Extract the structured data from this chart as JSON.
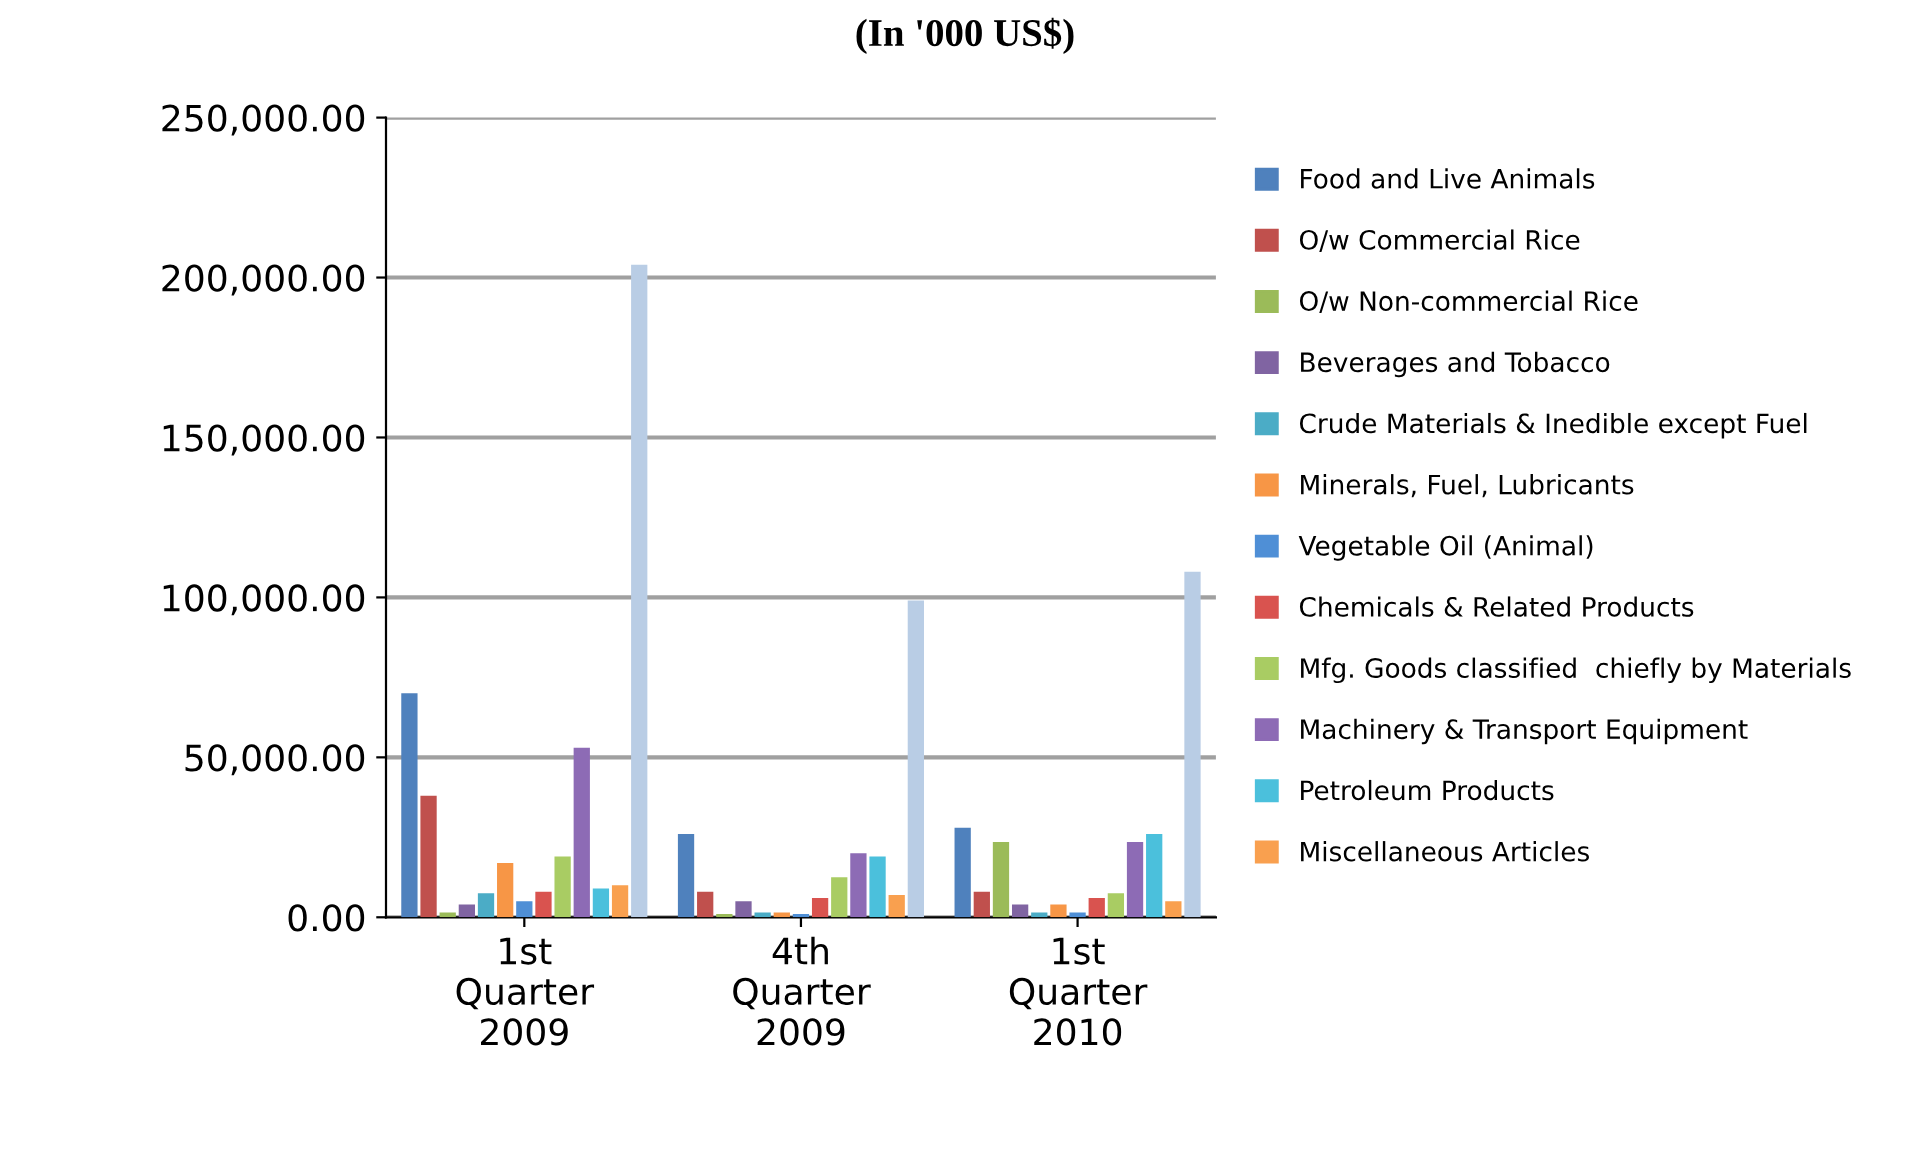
{
  "chart_data": {
    "type": "bar",
    "title": "(In '000 US$)",
    "categories": [
      "1st\nQuarter\n2009",
      "4th\nQuarter\n2009",
      "1st\nQuarter\n2010"
    ],
    "series": [
      {
        "name": "Food and Live Animals",
        "color": "#4f81bd",
        "values": [
          70000,
          26000,
          28000
        ]
      },
      {
        "name": "O/w Commercial Rice",
        "color": "#c0504d",
        "values": [
          38000,
          8000,
          8000
        ]
      },
      {
        "name": "O/w Non-commercial Rice",
        "color": "#9bbb59",
        "values": [
          1500,
          1000,
          23500
        ]
      },
      {
        "name": "Beverages and Tobacco",
        "color": "#8064a2",
        "values": [
          4000,
          5000,
          4000
        ]
      },
      {
        "name": "Crude Materials & Inedible except Fuel",
        "color": "#4bacc6",
        "values": [
          7500,
          1500,
          1500
        ]
      },
      {
        "name": "Minerals, Fuel, Lubricants",
        "color": "#f79646",
        "values": [
          17000,
          1500,
          4000
        ]
      },
      {
        "name": "Vegetable Oil (Animal)",
        "color": "#4f8fd6",
        "values": [
          5000,
          1000,
          1500
        ]
      },
      {
        "name": "Chemicals & Related Products",
        "color": "#d9534f",
        "values": [
          8000,
          6000,
          6000
        ]
      },
      {
        "name": "Mfg. Goods classified  chiefly by Materials",
        "color": "#a9cc63",
        "values": [
          19000,
          12500,
          7500
        ]
      },
      {
        "name": "Machinery & Transport Equipment",
        "color": "#8d6bb5",
        "values": [
          53000,
          20000,
          23500
        ]
      },
      {
        "name": "Petroleum Products",
        "color": "#4bc0dc",
        "values": [
          9000,
          19000,
          26000
        ]
      },
      {
        "name": "Miscellaneous Articles",
        "color": "#f9a04f",
        "values": [
          10000,
          7000,
          5000
        ]
      },
      {
        "color": "#b9cde5",
        "values": [
          204000,
          99000,
          108000
        ]
      }
    ],
    "ylim": [
      0,
      250000
    ],
    "yticks": [
      {
        "value": 0,
        "label": "0.00"
      },
      {
        "value": 50000,
        "label": "50,000.00"
      },
      {
        "value": 100000,
        "label": "100,000.00"
      },
      {
        "value": 150000,
        "label": "150,000.00"
      },
      {
        "value": 200000,
        "label": "200,000.00"
      },
      {
        "value": 250000,
        "label": "250,000.00"
      }
    ],
    "grid": "y",
    "legend": "right"
  }
}
